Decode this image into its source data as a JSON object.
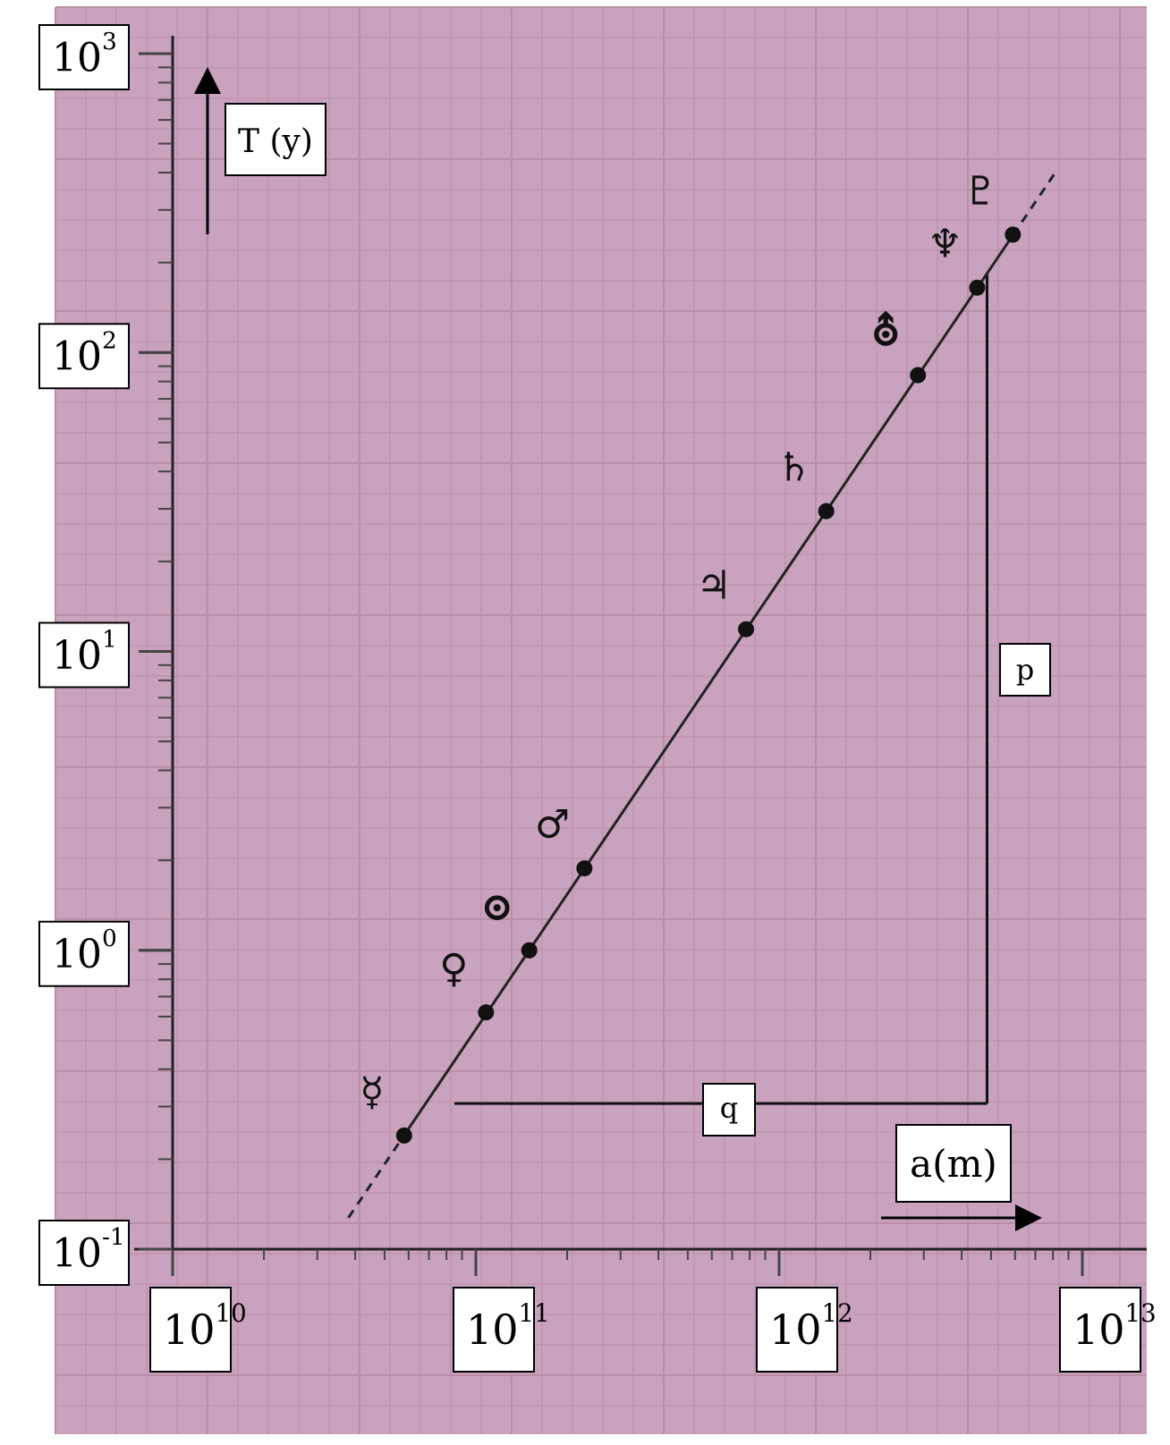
{
  "chart_data": {
    "type": "scatter",
    "x_scale": "log",
    "y_scale": "log",
    "xlim": [
      10000000000.0,
      10000000000000.0
    ],
    "ylim": [
      0.1,
      1000
    ],
    "grid": true,
    "x_axis_label": "a(m)",
    "y_axis_label": "T (y)",
    "x_ticks": [
      {
        "base": "10",
        "exp": "10",
        "value": 10000000000.0
      },
      {
        "base": "10",
        "exp": "11",
        "value": 100000000000.0
      },
      {
        "base": "10",
        "exp": "12",
        "value": 1000000000000.0
      },
      {
        "base": "10",
        "exp": "13",
        "value": 10000000000000.0
      }
    ],
    "y_ticks": [
      {
        "base": "10",
        "exp": "3",
        "value": 1000
      },
      {
        "base": "10",
        "exp": "2",
        "value": 100
      },
      {
        "base": "10",
        "exp": "1",
        "value": 10
      },
      {
        "base": "10",
        "exp": "0",
        "value": 1
      },
      {
        "base": "10",
        "exp": "-1",
        "value": 0.1
      }
    ],
    "points": [
      {
        "symbol": "☿",
        "x": 58000000000.0,
        "y": 0.24
      },
      {
        "symbol": "♀",
        "x": 108000000000.0,
        "y": 0.62
      },
      {
        "symbol": "⊙",
        "x": 150000000000.0,
        "y": 1.0
      },
      {
        "symbol": "♂",
        "x": 228000000000.0,
        "y": 1.88
      },
      {
        "symbol": "♃",
        "x": 778000000000.0,
        "y": 11.86
      },
      {
        "symbol": "♄",
        "x": 1430000000000.0,
        "y": 29.46
      },
      {
        "symbol": "⛢",
        "x": 2870000000000.0,
        "y": 84.0
      },
      {
        "symbol": "♆",
        "x": 4500000000000.0,
        "y": 164.8
      },
      {
        "symbol": "♇",
        "x": 5900000000000.0,
        "y": 248.0
      }
    ],
    "fit_line": {
      "x_start": 38000000000.0,
      "x_end": 8200000000000.0,
      "slope": 1.5
    },
    "triangle": {
      "x_left": 85000000000.0,
      "x_right": 4850000000000.0,
      "y_bottom": 0.307,
      "y_top": 184,
      "q_label": "q",
      "p_label": "p"
    }
  }
}
